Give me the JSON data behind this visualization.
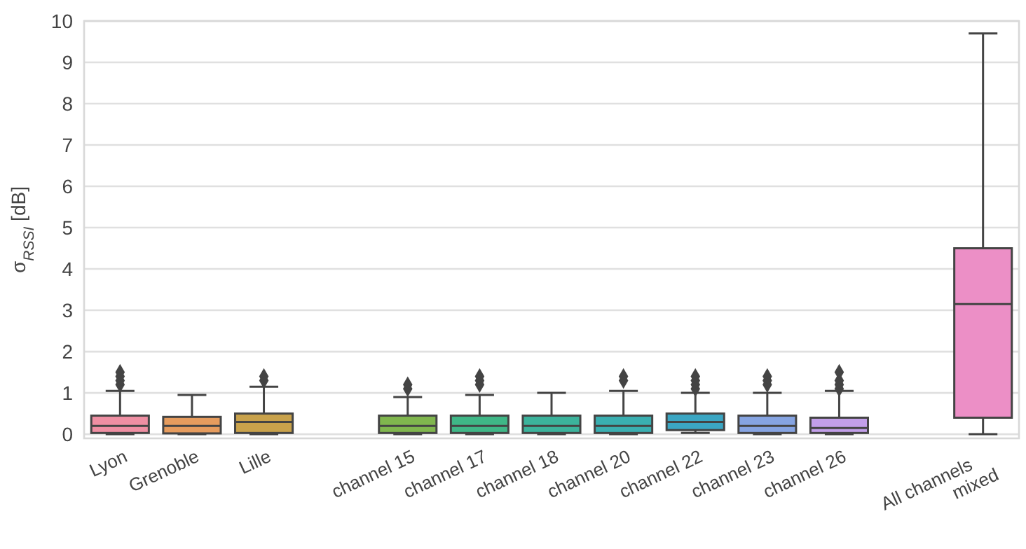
{
  "chart_data": {
    "type": "box",
    "ylabel": "σ$_{RSSI}$ [dB]",
    "categories": [
      "Lyon",
      "Grenoble",
      "Lille",
      null,
      "channel 15",
      "channel 17",
      "channel 18",
      "channel 20",
      "channel 22",
      "channel 23",
      "channel 26",
      null,
      "All channels\nmixed"
    ],
    "boxes": [
      {
        "low": 0,
        "q1": 0.03,
        "median": 0.2,
        "q3": 0.45,
        "high": 1.05,
        "outliers": [
          1.2,
          1.3,
          1.4,
          1.5
        ]
      },
      {
        "low": 0,
        "q1": 0.02,
        "median": 0.2,
        "q3": 0.42,
        "high": 0.95
      },
      {
        "low": 0,
        "q1": 0.03,
        "median": 0.3,
        "q3": 0.5,
        "high": 1.15,
        "outliers": [
          1.3,
          1.4
        ]
      },
      null,
      {
        "low": 0,
        "q1": 0.03,
        "median": 0.2,
        "q3": 0.45,
        "high": 0.9,
        "outliers": [
          1.1,
          1.2
        ]
      },
      {
        "low": 0,
        "q1": 0.03,
        "median": 0.2,
        "q3": 0.45,
        "high": 0.95,
        "outliers": [
          1.2,
          1.3,
          1.4
        ]
      },
      {
        "low": 0,
        "q1": 0.03,
        "median": 0.2,
        "q3": 0.45,
        "high": 1.0
      },
      {
        "low": 0,
        "q1": 0.03,
        "median": 0.2,
        "q3": 0.45,
        "high": 1.05,
        "outliers": [
          1.3,
          1.4
        ]
      },
      {
        "low": 0.03,
        "q1": 0.1,
        "median": 0.3,
        "q3": 0.5,
        "high": 1.0,
        "outliers": [
          1.1,
          1.2,
          1.3,
          1.4
        ]
      },
      {
        "low": 0,
        "q1": 0.03,
        "median": 0.2,
        "q3": 0.45,
        "high": 1.0,
        "outliers": [
          1.2,
          1.3,
          1.4
        ]
      },
      {
        "low": 0,
        "q1": 0.03,
        "median": 0.15,
        "q3": 0.4,
        "high": 1.05,
        "outliers": [
          1.1,
          1.2,
          1.3,
          1.5
        ]
      },
      null,
      {
        "low": 0,
        "q1": 0.4,
        "median": 3.15,
        "q3": 4.5,
        "high": 9.7
      }
    ],
    "colors": [
      "#ef8fa3",
      "#e69c5e",
      "#c9a24b",
      null,
      "#80b64e",
      "#3fb787",
      "#3cb39c",
      "#3aafb1",
      "#3ba6c3",
      "#86a4e2",
      "#c29fe9",
      null,
      "#ec8fc6"
    ],
    "ylim": [
      -0.1,
      10
    ],
    "yticks": [
      0,
      1,
      2,
      3,
      4,
      5,
      6,
      7,
      8,
      9,
      10
    ],
    "grid": "y",
    "marker": "diamond"
  }
}
